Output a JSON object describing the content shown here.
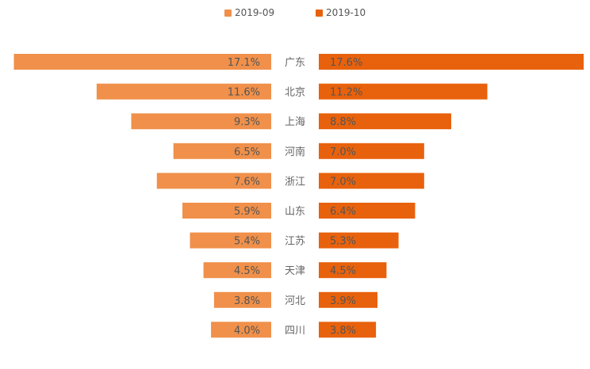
{
  "chart_data": {
    "type": "bar",
    "layout": "butterfly",
    "categories": [
      "广东",
      "北京",
      "上海",
      "河南",
      "浙江",
      "山东",
      "江苏",
      "天津",
      "河北",
      "四川"
    ],
    "series": [
      {
        "name": "2019-09",
        "color": "#F0904A",
        "values": [
          17.1,
          11.6,
          9.3,
          6.5,
          7.6,
          5.9,
          5.4,
          4.5,
          3.8,
          4.0
        ],
        "labels": [
          "17.1%",
          "11.6%",
          "9.3%",
          "6.5%",
          "7.6%",
          "5.9%",
          "5.4%",
          "4.5%",
          "3.8%",
          "4.0%"
        ]
      },
      {
        "name": "2019-10",
        "color": "#E8610C",
        "values": [
          17.6,
          11.2,
          8.8,
          7.0,
          7.0,
          6.4,
          5.3,
          4.5,
          3.9,
          3.8
        ],
        "labels": [
          "17.6%",
          "11.2%",
          "8.8%",
          "7.0%",
          "7.0%",
          "6.4%",
          "5.3%",
          "4.5%",
          "3.9%",
          "3.8%"
        ]
      }
    ],
    "value_unit": "%",
    "legend_position": "top-center",
    "grid": false,
    "xlim": [
      0,
      17.6
    ]
  }
}
